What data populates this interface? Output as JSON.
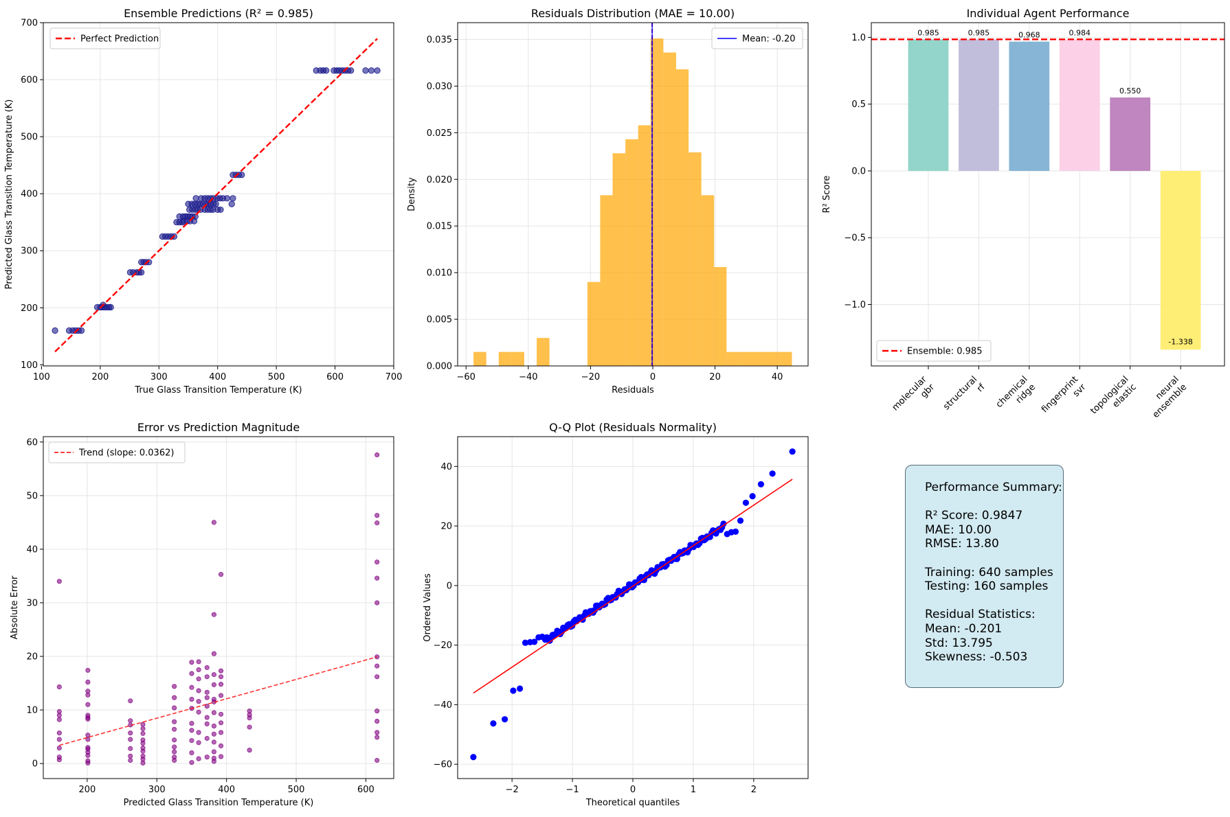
{
  "chart_data": [
    {
      "id": "pred",
      "type": "scatter",
      "title": "Ensemble Predictions (R² = 0.985)",
      "xlabel": "True Glass Transition Temperature (K)",
      "ylabel": "Predicted Glass Transition Temperature (K)",
      "xlim": [
        103,
        700
      ],
      "ylim": [
        98,
        700
      ],
      "xticks": [
        100,
        200,
        300,
        400,
        500,
        600,
        700
      ],
      "yticks": [
        100,
        200,
        300,
        400,
        500,
        600,
        700
      ],
      "grid": true,
      "legend": [
        "Perfect Prediction"
      ],
      "legend_position": "top-left",
      "reference_line": {
        "name": "Perfect Prediction",
        "color": "#ff0000",
        "x": [
          123,
          672
        ],
        "y": [
          123,
          672
        ]
      },
      "point_color": "#1a1a8c",
      "points": [
        [
          123,
          160
        ],
        [
          147,
          160
        ],
        [
          153,
          160
        ],
        [
          158,
          160
        ],
        [
          163,
          160
        ],
        [
          168,
          160
        ],
        [
          195,
          201
        ],
        [
          200,
          201
        ],
        [
          203,
          201
        ],
        [
          207,
          201
        ],
        [
          211,
          201
        ],
        [
          215,
          201
        ],
        [
          218,
          201
        ],
        [
          205,
          205
        ],
        [
          251,
          262
        ],
        [
          256,
          262
        ],
        [
          262,
          262
        ],
        [
          266,
          262
        ],
        [
          270,
          262
        ],
        [
          270,
          280
        ],
        [
          274,
          280
        ],
        [
          278,
          280
        ],
        [
          283,
          280
        ],
        [
          306,
          325
        ],
        [
          311,
          325
        ],
        [
          316,
          325
        ],
        [
          321,
          325
        ],
        [
          326,
          325
        ],
        [
          330,
          350
        ],
        [
          335,
          350
        ],
        [
          340,
          350
        ],
        [
          335,
          360
        ],
        [
          341,
          360
        ],
        [
          345,
          360
        ],
        [
          349,
          360
        ],
        [
          353,
          360
        ],
        [
          357,
          360
        ],
        [
          362,
          360
        ],
        [
          342,
          352
        ],
        [
          348,
          352
        ],
        [
          353,
          352
        ],
        [
          360,
          352
        ],
        [
          352,
          372
        ],
        [
          357,
          372
        ],
        [
          362,
          372
        ],
        [
          366,
          372
        ],
        [
          371,
          372
        ],
        [
          350,
          382
        ],
        [
          356,
          382
        ],
        [
          361,
          382
        ],
        [
          366,
          382
        ],
        [
          370,
          382
        ],
        [
          375,
          382
        ],
        [
          380,
          382
        ],
        [
          384,
          382
        ],
        [
          388,
          382
        ],
        [
          393,
          382
        ],
        [
          397,
          382
        ],
        [
          363,
          392
        ],
        [
          372,
          392
        ],
        [
          378,
          392
        ],
        [
          383,
          392
        ],
        [
          388,
          392
        ],
        [
          393,
          392
        ],
        [
          399,
          392
        ],
        [
          404,
          392
        ],
        [
          409,
          392
        ],
        [
          416,
          392
        ],
        [
          378,
          372
        ],
        [
          383,
          372
        ],
        [
          388,
          372
        ],
        [
          392,
          372
        ],
        [
          400,
          372
        ],
        [
          405,
          372
        ],
        [
          424,
          382
        ],
        [
          426,
          392
        ],
        [
          426,
          433
        ],
        [
          431,
          433
        ],
        [
          436,
          433
        ],
        [
          441,
          433
        ],
        [
          568,
          616
        ],
        [
          575,
          616
        ],
        [
          580,
          616
        ],
        [
          585,
          616
        ],
        [
          598,
          616
        ],
        [
          603,
          616
        ],
        [
          607,
          616
        ],
        [
          612,
          616
        ],
        [
          617,
          616
        ],
        [
          622,
          616
        ],
        [
          627,
          616
        ],
        [
          652,
          616
        ],
        [
          662,
          616
        ],
        [
          672,
          616
        ]
      ]
    },
    {
      "id": "resid",
      "type": "histogram",
      "title": "Residuals Distribution (MAE = 10.00)",
      "xlabel": "Residuals",
      "ylabel": "Density",
      "xlim": [
        -62.7,
        49.9
      ],
      "ylim": [
        0,
        0.0368
      ],
      "xticks": [
        -60,
        -40,
        -20,
        0,
        20,
        40
      ],
      "yticks": [
        0.0,
        0.005,
        0.01,
        0.015,
        0.02,
        0.025,
        0.03,
        0.035
      ],
      "grid": true,
      "bar_color": "#ffa500",
      "bin_edges": [
        -57.6,
        -53.5,
        -49.5,
        -45.4,
        -41.3,
        -37.3,
        -33.2,
        -29.1,
        -25.1,
        -21.0,
        -16.9,
        -12.9,
        -8.8,
        -4.7,
        -0.7,
        3.4,
        7.5,
        11.5,
        15.6,
        19.7,
        23.7,
        27.8,
        31.9,
        35.9,
        40.0,
        44.7
      ],
      "densities": [
        0.0015,
        0,
        0.0015,
        0.0015,
        0,
        0.003,
        0,
        0,
        0,
        0.009,
        0.0183,
        0.0228,
        0.0243,
        0.0258,
        0.0351,
        0.0336,
        0.0318,
        0.0229,
        0.0183,
        0.0106,
        0.0015,
        0.0015,
        0.0015,
        0.0015,
        0.0015
      ],
      "mean_line": {
        "label": "Mean: -0.20",
        "value": -0.2,
        "color": "#0000ff"
      },
      "legend": [
        "Mean: -0.20"
      ],
      "legend_position": "top-right"
    },
    {
      "id": "agents",
      "type": "bar",
      "title": "Individual Agent Performance",
      "ylabel": "R² Score",
      "categories": [
        "molecular\ngbr",
        "structural\nrf",
        "chemical\nridge",
        "fingerprint\nsvr",
        "topological\nelastic",
        "neural\nensemble"
      ],
      "values": [
        0.985,
        0.985,
        0.968,
        0.984,
        0.55,
        -1.338
      ],
      "value_labels": [
        "0.985",
        "0.985",
        "0.968",
        "0.984",
        "0.550",
        "-1.338"
      ],
      "colors": [
        "#8dd3c7",
        "#bebada",
        "#80b1d3",
        "#fccde5",
        "#bc80bd",
        "#ffed6f"
      ],
      "ylim": [
        -1.46,
        1.11
      ],
      "yticks": [
        -1.0,
        -0.5,
        0.0,
        0.5,
        1.0
      ],
      "grid": true,
      "reference_line": {
        "label": "Ensemble: 0.985",
        "value": 0.985,
        "color": "#ff0000"
      },
      "legend": [
        "Ensemble: 0.985"
      ],
      "legend_position": "bottom-left"
    },
    {
      "id": "err",
      "type": "scatter",
      "title": "Error vs Prediction Magnitude",
      "xlabel": "Predicted Glass Transition Temperature (K)",
      "ylabel": "Absolute Error",
      "xlim": [
        137,
        640
      ],
      "ylim": [
        -2.8,
        61
      ],
      "xticks": [
        200,
        300,
        400,
        500,
        600
      ],
      "yticks": [
        0,
        10,
        20,
        30,
        40,
        50,
        60
      ],
      "grid": true,
      "point_color": "#800080",
      "trend": {
        "label": "Trend (slope: 0.0362)",
        "slope": 0.0362,
        "x": [
          160,
          616
        ],
        "y": [
          3.4,
          19.9
        ],
        "color": "#ff0000"
      },
      "legend": [
        "Trend (slope: 0.0362)"
      ],
      "legend_position": "top-left",
      "points": [
        [
          160,
          34.0
        ],
        [
          160,
          14.3
        ],
        [
          160,
          9.7
        ],
        [
          160,
          9.0
        ],
        [
          160,
          8.2
        ],
        [
          160,
          5.7
        ],
        [
          160,
          4.5
        ],
        [
          160,
          2.9
        ],
        [
          160,
          1.2
        ],
        [
          160,
          0.7
        ],
        [
          201,
          17.4
        ],
        [
          201,
          15.2
        ],
        [
          201,
          13.5
        ],
        [
          201,
          12.8
        ],
        [
          201,
          11.0
        ],
        [
          201,
          9.0
        ],
        [
          201,
          8.6
        ],
        [
          201,
          8.3
        ],
        [
          201,
          5.3
        ],
        [
          201,
          4.5
        ],
        [
          201,
          3.0
        ],
        [
          201,
          2.7
        ],
        [
          201,
          2.1
        ],
        [
          201,
          1.5
        ],
        [
          201,
          0.5
        ],
        [
          201,
          0.1
        ],
        [
          262,
          11.7
        ],
        [
          262,
          8.0
        ],
        [
          262,
          7.2
        ],
        [
          262,
          5.7
        ],
        [
          262,
          4.5
        ],
        [
          262,
          2.8
        ],
        [
          262,
          1.4
        ],
        [
          262,
          0.6
        ],
        [
          280,
          7.3
        ],
        [
          280,
          6.5
        ],
        [
          280,
          5.6
        ],
        [
          280,
          4.4
        ],
        [
          280,
          3.8
        ],
        [
          280,
          2.9
        ],
        [
          280,
          2.3
        ],
        [
          280,
          1.4
        ],
        [
          280,
          0.8
        ],
        [
          280,
          0.1
        ],
        [
          325,
          14.4
        ],
        [
          325,
          12.3
        ],
        [
          325,
          10.4
        ],
        [
          325,
          7.8
        ],
        [
          325,
          6.4
        ],
        [
          325,
          4.4
        ],
        [
          325,
          3.1
        ],
        [
          325,
          2.2
        ],
        [
          325,
          1.2
        ],
        [
          325,
          0.6
        ],
        [
          350,
          18.9
        ],
        [
          350,
          16.8
        ],
        [
          350,
          14.2
        ],
        [
          350,
          12.0
        ],
        [
          350,
          10.3
        ],
        [
          350,
          7.5
        ],
        [
          350,
          6.2
        ],
        [
          350,
          4.3
        ],
        [
          350,
          2.0
        ],
        [
          350,
          0.2
        ],
        [
          360,
          19.0
        ],
        [
          360,
          17.5
        ],
        [
          360,
          15.8
        ],
        [
          360,
          13.6
        ],
        [
          360,
          11.6
        ],
        [
          360,
          9.6
        ],
        [
          360,
          5.8
        ],
        [
          360,
          3.9
        ],
        [
          360,
          0.9
        ],
        [
          372,
          17.9
        ],
        [
          372,
          16.2
        ],
        [
          372,
          13.3
        ],
        [
          372,
          12.3
        ],
        [
          372,
          10.7
        ],
        [
          372,
          8.6
        ],
        [
          372,
          7.4
        ],
        [
          372,
          4.7
        ],
        [
          372,
          1.2
        ],
        [
          382,
          45.0
        ],
        [
          382,
          27.8
        ],
        [
          382,
          20.5
        ],
        [
          382,
          16.6
        ],
        [
          382,
          14.7
        ],
        [
          382,
          12.0
        ],
        [
          382,
          11.5
        ],
        [
          382,
          9.5
        ],
        [
          382,
          7.0
        ],
        [
          382,
          5.5
        ],
        [
          382,
          4.0
        ],
        [
          382,
          2.2
        ],
        [
          382,
          1.0
        ],
        [
          382,
          0.4
        ],
        [
          392,
          35.3
        ],
        [
          392,
          17.3
        ],
        [
          392,
          16.2
        ],
        [
          392,
          14.8
        ],
        [
          392,
          12.7
        ],
        [
          392,
          9.2
        ],
        [
          392,
          7.6
        ],
        [
          392,
          5.8
        ],
        [
          392,
          3.3
        ],
        [
          392,
          1.3
        ],
        [
          433,
          9.8
        ],
        [
          433,
          9.1
        ],
        [
          433,
          8.5
        ],
        [
          433,
          6.8
        ],
        [
          433,
          2.5
        ],
        [
          616,
          57.6
        ],
        [
          616,
          46.3
        ],
        [
          616,
          44.9
        ],
        [
          616,
          37.6
        ],
        [
          616,
          34.6
        ],
        [
          616,
          30.0
        ],
        [
          616,
          19.9
        ],
        [
          616,
          18.2
        ],
        [
          616,
          16.2
        ],
        [
          616,
          9.8
        ],
        [
          616,
          7.9
        ],
        [
          616,
          5.8
        ],
        [
          616,
          4.9
        ],
        [
          616,
          0.6
        ]
      ]
    },
    {
      "id": "qq",
      "type": "scatter",
      "title": "Q-Q Plot (Residuals Normality)",
      "xlabel": "Theoretical quantiles",
      "ylabel": "Ordered Values",
      "xlim": [
        -2.9,
        2.9
      ],
      "ylim": [
        -64.8,
        50.0
      ],
      "xticks": [
        -2,
        -1,
        0,
        1,
        2
      ],
      "yticks": [
        -60,
        -40,
        -20,
        0,
        20,
        40
      ],
      "grid": true,
      "point_color": "#0000ff",
      "fit_line": {
        "x": [
          -2.64,
          2.64
        ],
        "y": [
          -36.1,
          35.7
        ],
        "color": "#ff0000"
      },
      "tail_points": [
        [
          -2.64,
          -57.6
        ],
        [
          -2.31,
          -46.3
        ],
        [
          -2.12,
          -44.9
        ],
        [
          -1.98,
          -35.3
        ],
        [
          -1.87,
          -34.6
        ],
        [
          -1.78,
          -19.2
        ],
        [
          -1.7,
          -19.0
        ],
        [
          -1.63,
          -18.9
        ],
        [
          -1.56,
          -17.4
        ],
        [
          -1.5,
          -17.2
        ],
        [
          1.56,
          17.3
        ],
        [
          1.63,
          17.9
        ],
        [
          1.7,
          18.1
        ],
        [
          1.78,
          21.8
        ],
        [
          1.87,
          27.8
        ],
        [
          1.98,
          30.0
        ],
        [
          2.12,
          34.0
        ],
        [
          2.31,
          37.6
        ],
        [
          2.64,
          45.0
        ]
      ],
      "body": {
        "x_from": -1.45,
        "x_to": 1.5,
        "count": 120,
        "slope": 13.0,
        "intercept": 0.3
      }
    }
  ],
  "summary": {
    "lines": [
      "Performance Summary:",
      "",
      "R² Score: 0.9847",
      "MAE: 10.00",
      "RMSE: 13.80",
      "",
      "Training: 640 samples",
      "Testing: 160 samples",
      "",
      "Residual Statistics:",
      "Mean: -0.201",
      "Std: 13.795",
      "Skewness: -0.503"
    ]
  }
}
